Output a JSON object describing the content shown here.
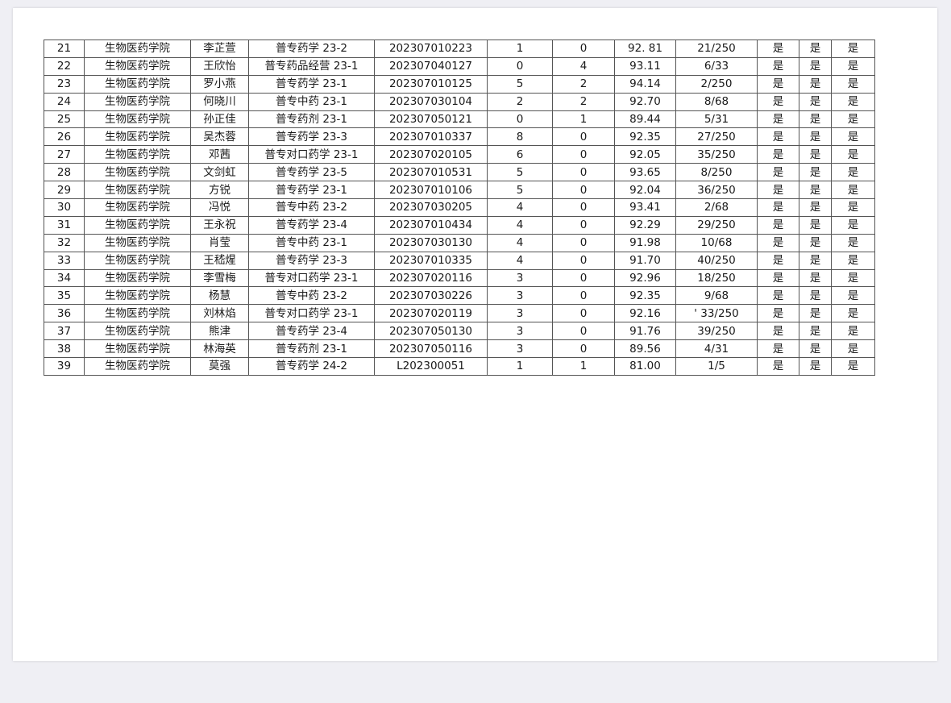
{
  "table": {
    "rows": [
      [
        "21",
        "生物医药学院",
        "李芷萱",
        "普专药学 23-2",
        "202307010223",
        "1",
        "0",
        "92. 81",
        "21/250",
        "是",
        "是",
        "是"
      ],
      [
        "22",
        "生物医药学院",
        "王欣怡",
        "普专药品经营 23-1",
        "202307040127",
        "0",
        "4",
        "93.11",
        "6/33",
        "是",
        "是",
        "是"
      ],
      [
        "23",
        "生物医药学院",
        "罗小燕",
        "普专药学 23-1",
        "202307010125",
        "5",
        "2",
        "94.14",
        "2/250",
        "是",
        "是",
        "是"
      ],
      [
        "24",
        "生物医药学院",
        "何晓川",
        "普专中药 23-1",
        "202307030104",
        "2",
        "2",
        "92.70",
        "8/68",
        "是",
        "是",
        "是"
      ],
      [
        "25",
        "生物医药学院",
        "孙正佳",
        "普专药剂 23-1",
        "202307050121",
        "0",
        "1",
        "89.44",
        "5/31",
        "是",
        "是",
        "是"
      ],
      [
        "26",
        "生物医药学院",
        "吴杰蓉",
        "普专药学 23-3",
        "202307010337",
        "8",
        "0",
        "92.35",
        "27/250",
        "是",
        "是",
        "是"
      ],
      [
        "27",
        "生物医药学院",
        "邓茜",
        "普专对口药学 23-1",
        "202307020105",
        "6",
        "0",
        "92.05",
        "35/250",
        "是",
        "是",
        "是"
      ],
      [
        "28",
        "生物医药学院",
        "文剑虹",
        "普专药学 23-5",
        "202307010531",
        "5",
        "0",
        "93.65",
        "8/250",
        "是",
        "是",
        "是"
      ],
      [
        "29",
        "生物医药学院",
        "方锐",
        "普专药学 23-1",
        "202307010106",
        "5",
        "0",
        "92.04",
        "36/250",
        "是",
        "是",
        "是"
      ],
      [
        "30",
        "生物医药学院",
        "冯悦",
        "普专中药 23-2",
        "202307030205",
        "4",
        "0",
        "93.41",
        "2/68",
        "是",
        "是",
        "是"
      ],
      [
        "31",
        "生物医药学院",
        "王永祝",
        "普专药学 23-4",
        "202307010434",
        "4",
        "0",
        "92.29",
        "29/250",
        "是",
        "是",
        "是"
      ],
      [
        "32",
        "生物医药学院",
        "肖莹",
        "普专中药 23-1",
        "202307030130",
        "4",
        "0",
        "91.98",
        "10/68",
        "是",
        "是",
        "是"
      ],
      [
        "33",
        "生物医药学院",
        "王嵇煋",
        "普专药学 23-3",
        "202307010335",
        "4",
        "0",
        "91.70",
        "40/250",
        "是",
        "是",
        "是"
      ],
      [
        "34",
        "生物医药学院",
        "李雪梅",
        "普专对口药学 23-1",
        "202307020116",
        "3",
        "0",
        "92.96",
        "18/250",
        "是",
        "是",
        "是"
      ],
      [
        "35",
        "生物医药学院",
        "杨慧",
        "普专中药 23-2",
        "202307030226",
        "3",
        "0",
        "92.35",
        "9/68",
        "是",
        "是",
        "是"
      ],
      [
        "36",
        "生物医药学院",
        "刘林焰",
        "普专对口药学 23-1",
        "202307020119",
        "3",
        "0",
        "92.16",
        "' 33/250",
        "是",
        "是",
        "是"
      ],
      [
        "37",
        "生物医药学院",
        "熊津",
        "普专药学 23-4",
        "202307050130",
        "3",
        "0",
        "91.76",
        "39/250",
        "是",
        "是",
        "是"
      ],
      [
        "38",
        "生物医药学院",
        "林海英",
        "普专药剂 23-1",
        "202307050116",
        "3",
        "0",
        "89.56",
        "4/31",
        "是",
        "是",
        "是"
      ],
      [
        "39",
        "生物医药学院",
        "莫强",
        "普专药学 24-2",
        "L202300051",
        "1",
        "1",
        "81.00",
        "1/5",
        "是",
        "是",
        "是"
      ]
    ]
  }
}
